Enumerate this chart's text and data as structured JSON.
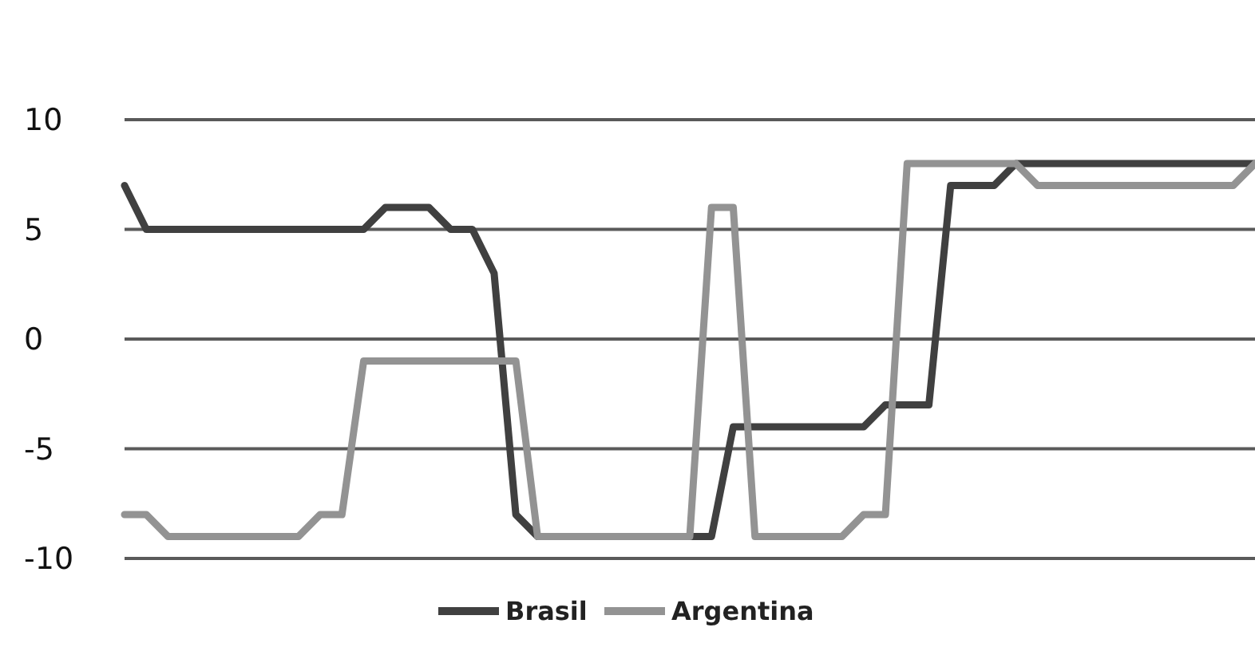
{
  "chart_data": {
    "type": "line",
    "categories": [
      null,
      null,
      null,
      null,
      null,
      null,
      null,
      null,
      null,
      null,
      null,
      null,
      null,
      null,
      null,
      null,
      null,
      null,
      null,
      null,
      null,
      null,
      null,
      null,
      null,
      null,
      null,
      null,
      null,
      null,
      null,
      null,
      null,
      null,
      null,
      null,
      null,
      null,
      null,
      null,
      null,
      null,
      null,
      null,
      null,
      null,
      null,
      null,
      null,
      null,
      null,
      null,
      null
    ],
    "series": [
      {
        "name": "Brasil",
        "color": "#404040",
        "values": [
          7,
          5,
          5,
          5,
          5,
          5,
          5,
          5,
          5,
          5,
          5,
          5,
          6,
          6,
          6,
          5,
          5,
          3,
          -8,
          -9,
          -9,
          -9,
          -9,
          -9,
          -9,
          -9,
          -9,
          -9,
          -4,
          -4,
          -4,
          -4,
          -4,
          -4,
          -4,
          -3,
          -3,
          -3,
          7,
          7,
          7,
          8,
          8,
          8,
          8,
          8,
          8,
          8,
          8,
          8,
          8,
          8,
          8
        ]
      },
      {
        "name": "Argentina",
        "color": "#939393",
        "values": [
          -8,
          -8,
          -9,
          -9,
          -9,
          -9,
          -9,
          -9,
          -9,
          -8,
          -8,
          -1,
          -1,
          -1,
          -1,
          -1,
          -1,
          -1,
          -1,
          -9,
          -9,
          -9,
          -9,
          -9,
          -9,
          -9,
          -9,
          6,
          6,
          -9,
          -9,
          -9,
          -9,
          -9,
          -8,
          -8,
          8,
          8,
          8,
          8,
          8,
          8,
          7,
          7,
          7,
          7,
          7,
          7,
          7,
          7,
          7,
          7,
          8
        ]
      }
    ],
    "ylim": [
      -10,
      10
    ],
    "yticks": [
      -10,
      -5,
      0,
      5,
      10
    ],
    "grid": "y",
    "legend": "bottom",
    "marker": "none",
    "line_style": "solid"
  }
}
